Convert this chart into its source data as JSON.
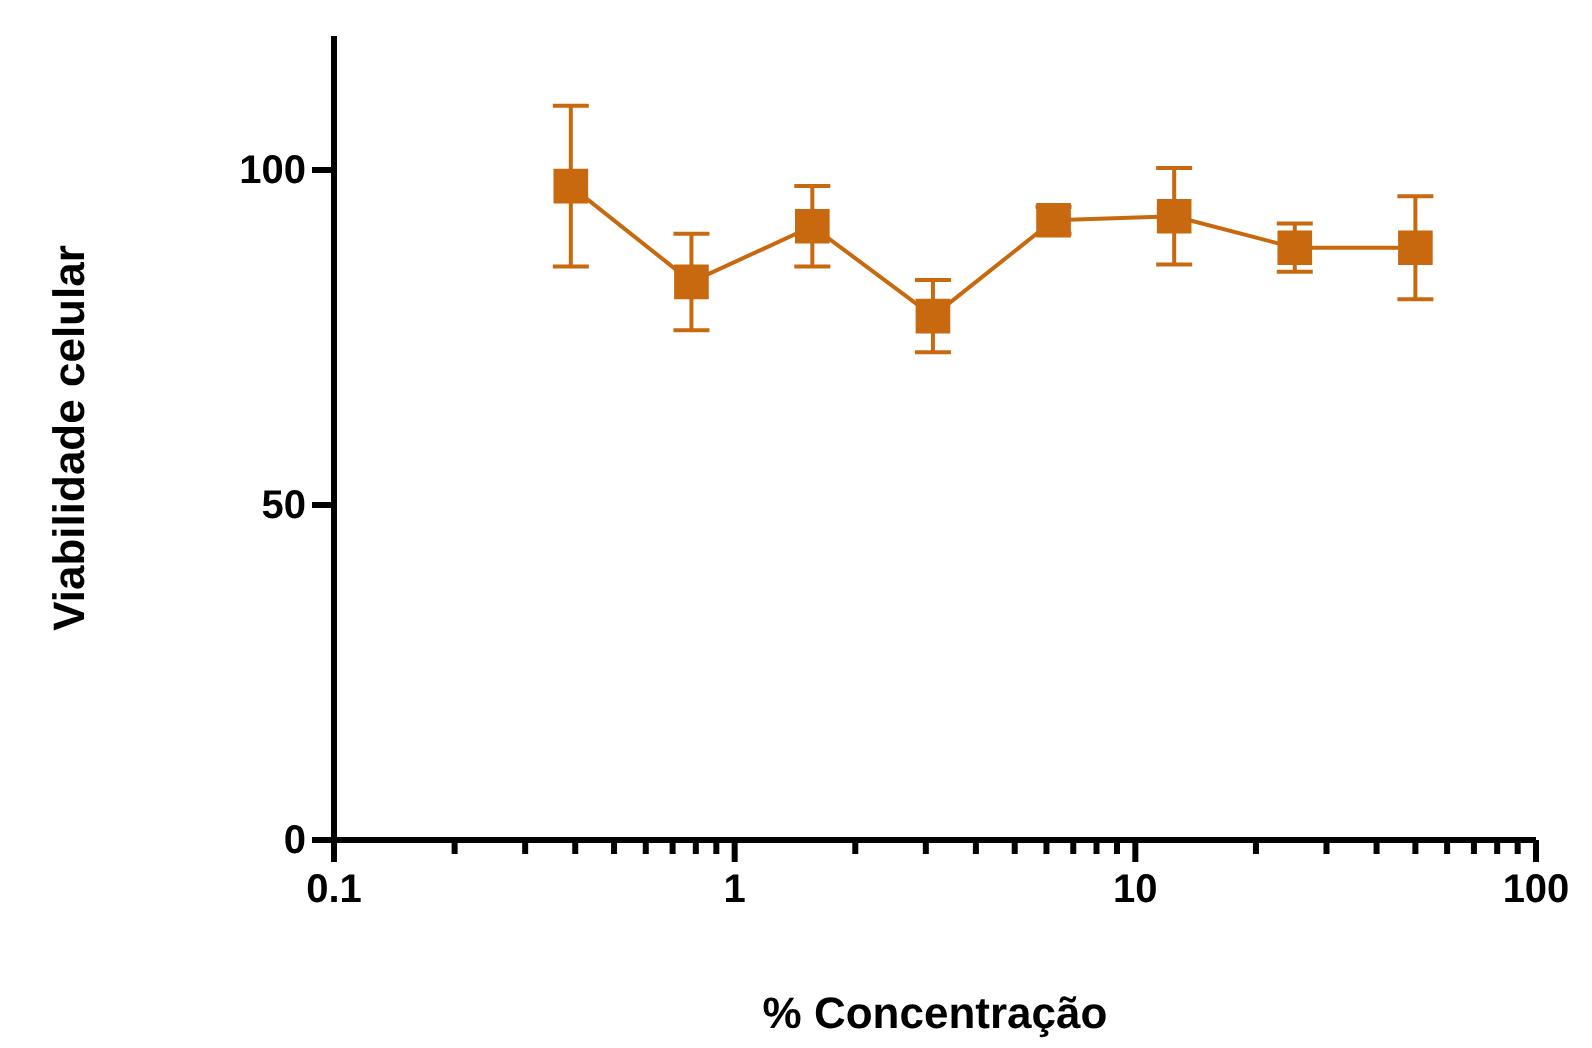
{
  "chart_data": {
    "type": "line",
    "xlabel": "% Concentração",
    "ylabel": "Viabilidade celular",
    "log": "x",
    "xlim": [
      0.1,
      100
    ],
    "ylim": [
      0,
      120
    ],
    "xticks": [
      0.1,
      {
        "value": 0.2,
        "label": null
      },
      {
        "value": 0.3,
        "label": null
      },
      {
        "value": 0.4,
        "label": null
      },
      {
        "value": 0.5,
        "label": null
      },
      {
        "value": 0.6,
        "label": null
      },
      {
        "value": 0.7,
        "label": null
      },
      {
        "value": 0.8,
        "label": null
      },
      {
        "value": 0.9,
        "label": null
      },
      1,
      {
        "value": 2,
        "label": null
      },
      {
        "value": 3,
        "label": null
      },
      {
        "value": 4,
        "label": null
      },
      {
        "value": 5,
        "label": null
      },
      {
        "value": 6,
        "label": null
      },
      {
        "value": 7,
        "label": null
      },
      {
        "value": 8,
        "label": null
      },
      {
        "value": 9,
        "label": null
      },
      10,
      {
        "value": 20,
        "label": null
      },
      {
        "value": 30,
        "label": null
      },
      {
        "value": 40,
        "label": null
      },
      {
        "value": 50,
        "label": null
      },
      {
        "value": 60,
        "label": null
      },
      {
        "value": 70,
        "label": null
      },
      {
        "value": 80,
        "label": null
      },
      {
        "value": 90,
        "label": null
      },
      100
    ],
    "yticks": [
      0,
      50,
      100
    ],
    "grid": false,
    "marker": "square",
    "line_style": "solid",
    "x": [
      0.39,
      0.78,
      1.5625,
      3.125,
      6.25,
      12.5,
      25,
      50
    ],
    "series": [
      {
        "color": "#c8690f",
        "values": [
          97.6,
          83.3,
          91.6,
          78.2,
          92.5,
          93.1,
          88.4,
          88.4
        ],
        "errors": [
          12,
          7.2,
          6,
          5.4,
          2,
          7.2,
          3.6,
          7.7
        ]
      }
    ]
  }
}
